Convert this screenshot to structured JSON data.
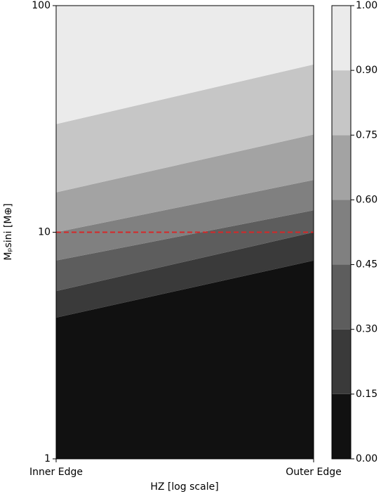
{
  "chart_data": {
    "type": "contour",
    "xlabel": "HZ [log scale]",
    "ylabel": "Mₚsini [M⊕]",
    "xticks": [
      "Inner Edge",
      "Outer Edge"
    ],
    "ylim": [
      1,
      100
    ],
    "yscale": "log",
    "yticks": [
      1,
      10,
      100
    ],
    "boundaries": [
      {
        "inner": 4.2,
        "outer": 7.5
      },
      {
        "inner": 5.5,
        "outer": 10
      },
      {
        "inner": 7.5,
        "outer": 12.5
      },
      {
        "inner": 10,
        "outer": 17
      },
      {
        "inner": 15,
        "outer": 27
      },
      {
        "inner": 30,
        "outer": 55
      }
    ],
    "colors": [
      "#111111",
      "#3a3a3a",
      "#5d5d5d",
      "#808080",
      "#a3a3a3",
      "#c6c6c6",
      "#ebebeb"
    ],
    "levels": [
      {
        "value": 0,
        "label": "0.00"
      },
      {
        "value": 0.15,
        "label": "0.15"
      },
      {
        "value": 0.3,
        "label": "0.30"
      },
      {
        "value": 0.45,
        "label": "0.45"
      },
      {
        "value": 0.6,
        "label": "0.60"
      },
      {
        "value": 0.75,
        "label": "0.75"
      },
      {
        "value": 0.9,
        "label": "0.90"
      },
      {
        "value": 1,
        "label": "1.00"
      }
    ],
    "hline": {
      "value": 10,
      "color": "#d62728"
    }
  }
}
